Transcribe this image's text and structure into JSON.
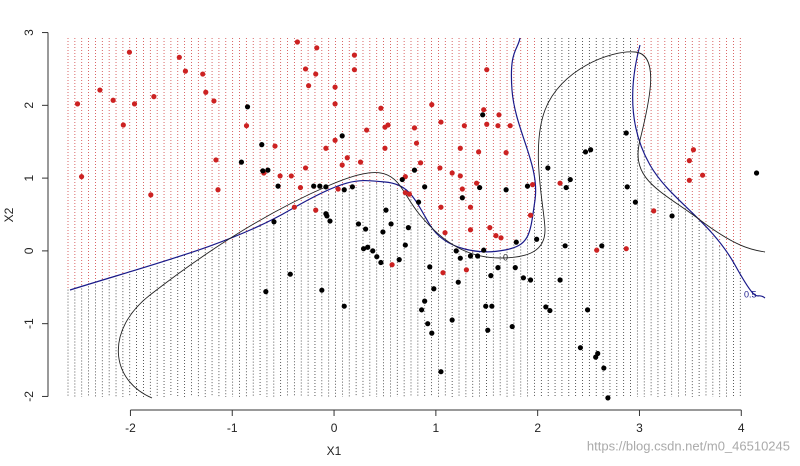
{
  "chart_data": {
    "type": "scatter",
    "xlabel": "X1",
    "ylabel": "X2",
    "xlim": [
      -2.8,
      4.4
    ],
    "ylim": [
      -2.2,
      3.2
    ],
    "xticks": [
      -2,
      -1,
      0,
      1,
      2,
      3,
      4
    ],
    "yticks": [
      -2,
      -1,
      0,
      1,
      2,
      3
    ],
    "annotations": [
      "0",
      "0.5",
      "https://blog.csdn.net/m0_46510245"
    ],
    "series": [
      {
        "color": "#cc2222",
        "x": [
          -2.52,
          -2.48,
          -2.3,
          -2.17,
          -2.07,
          -1.96,
          -2.01,
          -1.77,
          -1.8,
          -1.52,
          -1.46,
          -1.29,
          -1.26,
          -1.18,
          -1.16,
          -1.14,
          -0.86,
          -0.58,
          -0.69,
          -0.53,
          -0.42,
          -0.36,
          -0.28,
          -0.25,
          -0.18,
          -0.17,
          -0.28,
          -0.33,
          -0.39,
          -0.08,
          0.01,
          0.01,
          0.01,
          0.13,
          0.08,
          0.04,
          0.2,
          0.2,
          0.26,
          0.32,
          0.46,
          0.5,
          0.53,
          0.5,
          0.7,
          0.7,
          0.74,
          0.79,
          0.81,
          0.85,
          0.96,
          1.05,
          1.04,
          1.05,
          1.09,
          1.07,
          1.16,
          1.24,
          1.28,
          1.24,
          1.26,
          1.34,
          1.34,
          1.4,
          1.42,
          1.47,
          1.5,
          1.5,
          1.53,
          1.59,
          1.61,
          1.62,
          1.69,
          1.73,
          1.93,
          1.95,
          1.64,
          2.22,
          2.58,
          2.87,
          3.14,
          3.49,
          3.53,
          3.49,
          3.62,
          0.57,
          -0.18,
          1.3
        ],
        "values": [
          2.02,
          1.02,
          2.21,
          2.07,
          1.73,
          2.02,
          2.73,
          2.12,
          0.77,
          2.66,
          2.47,
          2.43,
          2.18,
          2.06,
          1.25,
          0.84,
          1.72,
          1.44,
          1.07,
          1.03,
          1.03,
          2.87,
          2.5,
          2.27,
          2.43,
          2.79,
          1.14,
          0.87,
          0.6,
          1.41,
          2.25,
          2.02,
          1.52,
          1.28,
          1.18,
          0.85,
          2.69,
          2.49,
          1.22,
          1.66,
          1.96,
          1.7,
          1.73,
          1.41,
          1.02,
          0.8,
          0.78,
          1.69,
          1.48,
          1.21,
          2.01,
          1.77,
          1.14,
          0.6,
          0.25,
          -0.3,
          1.07,
          1.41,
          1.72,
          1.03,
          0.85,
          0.6,
          0.29,
          0.93,
          1.36,
          1.94,
          2.49,
          1.74,
          0.32,
          0.21,
          1.72,
          1.87,
          1.35,
          1.72,
          0.49,
          0.91,
          0.18,
          0.93,
          0.01,
          0.03,
          0.55,
          1.24,
          1.39,
          0.97,
          1.04,
          -0.19,
          0.56,
          -0.26
        ]
      },
      {
        "color": "#000000",
        "x": [
          -0.85,
          -0.91,
          -0.71,
          -0.7,
          -0.65,
          -0.55,
          -0.59,
          -0.43,
          -0.67,
          -0.2,
          -0.14,
          -0.08,
          -0.08,
          -0.07,
          -0.04,
          -0.12,
          0.1,
          0.1,
          0.18,
          0.08,
          0.24,
          0.29,
          0.31,
          0.33,
          0.38,
          0.42,
          0.46,
          0.48,
          0.51,
          0.56,
          0.64,
          0.67,
          0.7,
          0.73,
          0.79,
          0.83,
          0.89,
          0.86,
          0.89,
          0.92,
          0.96,
          0.94,
          0.98,
          1.05,
          1.16,
          1.22,
          1.24,
          1.26,
          1.34,
          1.41,
          1.43,
          1.46,
          1.49,
          1.51,
          1.55,
          1.61,
          1.69,
          1.75,
          1.78,
          1.86,
          1.9,
          1.93,
          1.99,
          2.08,
          2.1,
          2.12,
          2.22,
          2.27,
          2.28,
          2.32,
          2.42,
          2.47,
          2.49,
          2.52,
          2.57,
          2.59,
          2.63,
          2.65,
          2.69,
          2.87,
          2.88,
          2.96,
          3.32,
          4.15,
          1.2,
          1.47,
          1.54,
          1.79
        ],
        "values": [
          1.98,
          1.22,
          1.46,
          1.1,
          1.11,
          0.89,
          0.4,
          -0.32,
          -0.56,
          0.89,
          0.89,
          0.88,
          0.51,
          0.48,
          0.41,
          -0.54,
          -0.76,
          0.84,
          0.88,
          1.58,
          0.37,
          0.03,
          0.3,
          0.05,
          0.0,
          -0.08,
          -0.16,
          0.26,
          0.56,
          0.37,
          -0.12,
          0.98,
          0.08,
          0.32,
          1.11,
          0.67,
          0.88,
          -0.81,
          -0.69,
          -1.0,
          -1.13,
          -0.22,
          -0.52,
          -1.66,
          -0.95,
          -0.43,
          -0.1,
          0.73,
          -0.07,
          -0.07,
          0.87,
          1.87,
          -0.76,
          -1.09,
          -0.76,
          -0.23,
          0.84,
          -1.04,
          -0.23,
          -0.37,
          0.89,
          -0.4,
          0.16,
          -0.77,
          1.14,
          -0.82,
          -0.4,
          0.07,
          0.87,
          0.98,
          -1.33,
          1.36,
          -0.81,
          1.39,
          -1.46,
          -1.41,
          0.07,
          -1.61,
          -2.02,
          1.62,
          0.88,
          0.67,
          0.48,
          1.07,
          0.0,
          0.01,
          -0.34,
          0.12
        ]
      }
    ]
  }
}
